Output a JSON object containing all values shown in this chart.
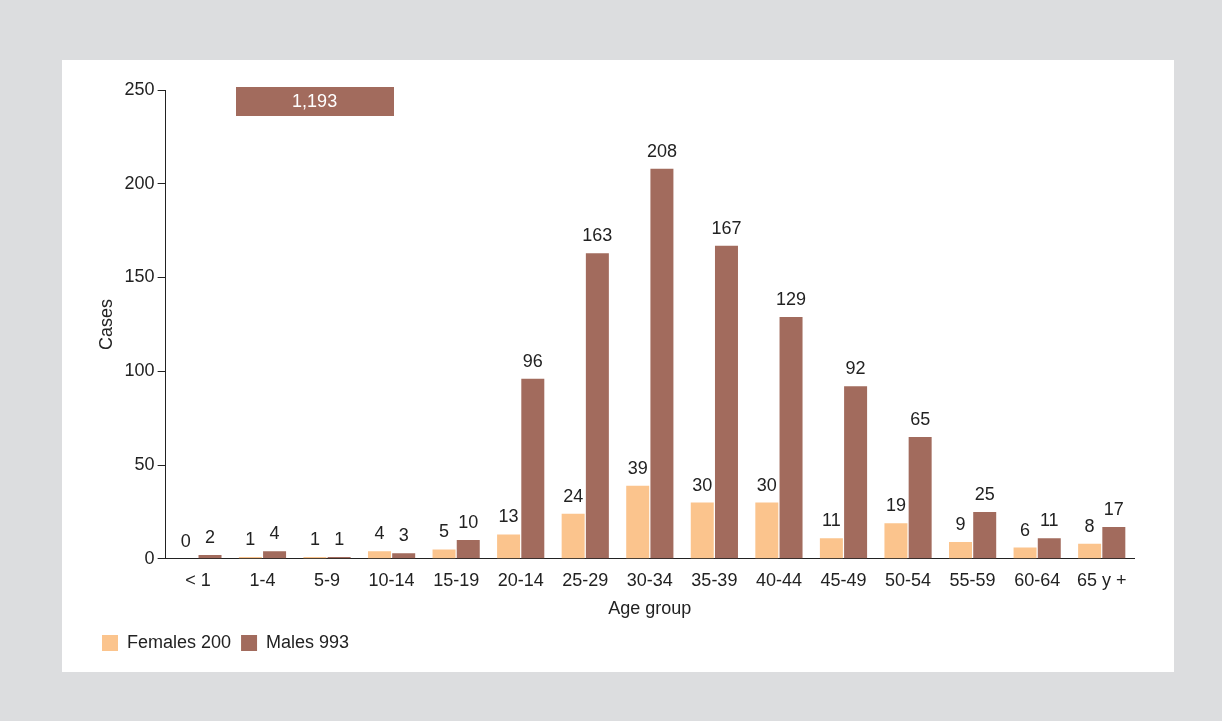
{
  "chart_data": {
    "type": "bar",
    "xlabel": "Age group",
    "ylabel": "Cases",
    "categories": [
      "< 1",
      "1-4",
      "5-9",
      "10-14",
      "15-19",
      "20-14",
      "25-29",
      "30-34",
      "35-39",
      "40-44",
      "45-49",
      "50-54",
      "55-59",
      "60-64",
      "65 y +"
    ],
    "series": [
      {
        "name": "Females 200",
        "color": "#fbc48d",
        "values": [
          0,
          1,
          1,
          4,
          5,
          13,
          24,
          39,
          30,
          30,
          11,
          19,
          9,
          6,
          8
        ]
      },
      {
        "name": "Males 993",
        "color": "#a26b5d",
        "values": [
          2,
          4,
          1,
          3,
          10,
          96,
          163,
          208,
          167,
          129,
          92,
          65,
          25,
          11,
          17
        ]
      }
    ],
    "ylim": [
      0,
      250
    ],
    "yticks": [
      0,
      50,
      100,
      150,
      200,
      250
    ],
    "grid": false,
    "legend": "bottom left",
    "data_labels": true,
    "annotations": [
      "1,193"
    ]
  }
}
